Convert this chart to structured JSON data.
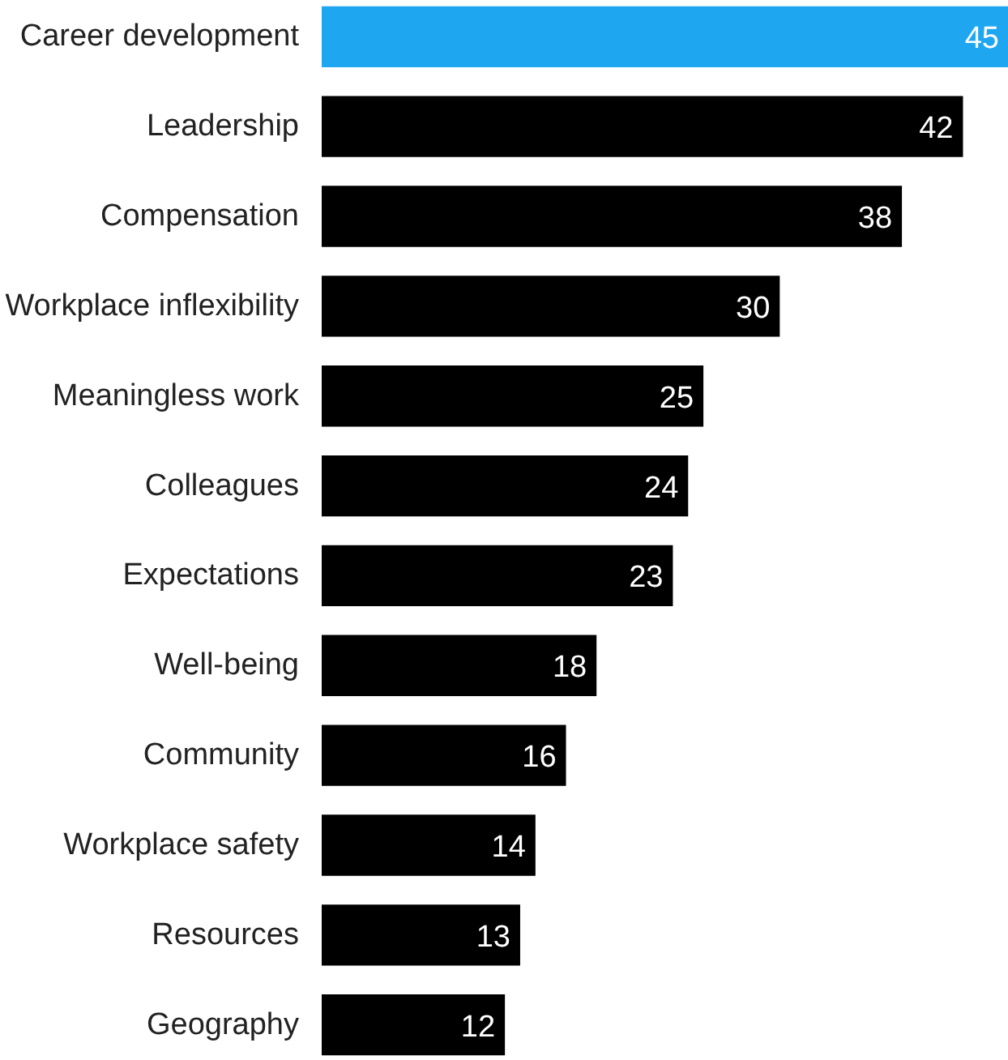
{
  "chart_data": {
    "type": "bar",
    "orientation": "horizontal",
    "categories": [
      "Career development",
      "Leadership",
      "Compensation",
      "Workplace inflexibility",
      "Meaningless work",
      "Colleagues",
      "Expectations",
      "Well-being",
      "Community",
      "Workplace safety",
      "Resources",
      "Geography"
    ],
    "values": [
      45,
      42,
      38,
      30,
      25,
      24,
      23,
      18,
      16,
      14,
      13,
      12
    ],
    "colors": [
      "#1ea7f0",
      "#000000",
      "#000000",
      "#000000",
      "#000000",
      "#000000",
      "#000000",
      "#000000",
      "#000000",
      "#000000",
      "#000000",
      "#000000"
    ],
    "data_labels": true,
    "grid": false
  }
}
